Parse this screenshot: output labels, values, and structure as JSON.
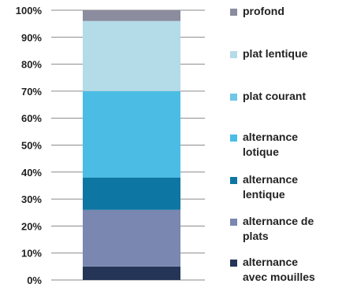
{
  "chart_data": {
    "type": "bar",
    "stacked": true,
    "categories": [
      ""
    ],
    "ylim": [
      0,
      100
    ],
    "ytick_labels": [
      "0%",
      "10%",
      "20%",
      "30%",
      "40%",
      "50%",
      "60%",
      "70%",
      "80%",
      "90%",
      "100%"
    ],
    "grid": true,
    "legend_placement": "right",
    "series": [
      {
        "name": "alternance avec mouilles",
        "value": 5,
        "color": "#253558"
      },
      {
        "name": "alternance de plats",
        "value": 21,
        "color": "#7A87B0"
      },
      {
        "name": "alternance lentique",
        "value": 12,
        "color": "#0E76A2"
      },
      {
        "name": "alternance lotique",
        "value": 32,
        "color": "#4BBDE5"
      },
      {
        "name": "plat courant",
        "value": 0,
        "color": "#6FC6E6"
      },
      {
        "name": "plat lentique",
        "value": 26,
        "color": "#B4DBE8"
      },
      {
        "name": "profond",
        "value": 4,
        "color": "#8B8C9E"
      }
    ],
    "legend": {
      "items": [
        {
          "label": "profond",
          "color": "#8B8C9E"
        },
        {
          "label": "plat lentique",
          "color": "#B4DBE8"
        },
        {
          "label": "plat courant",
          "color": "#6FC6E6"
        },
        {
          "label": "alternance lotique",
          "color": "#4BBDE5"
        },
        {
          "label": "alternance lentique",
          "color": "#0E76A2"
        },
        {
          "label": "alternance de plats",
          "color": "#7A87B0"
        },
        {
          "label": "alternance avec mouilles",
          "color": "#253558"
        }
      ]
    }
  }
}
